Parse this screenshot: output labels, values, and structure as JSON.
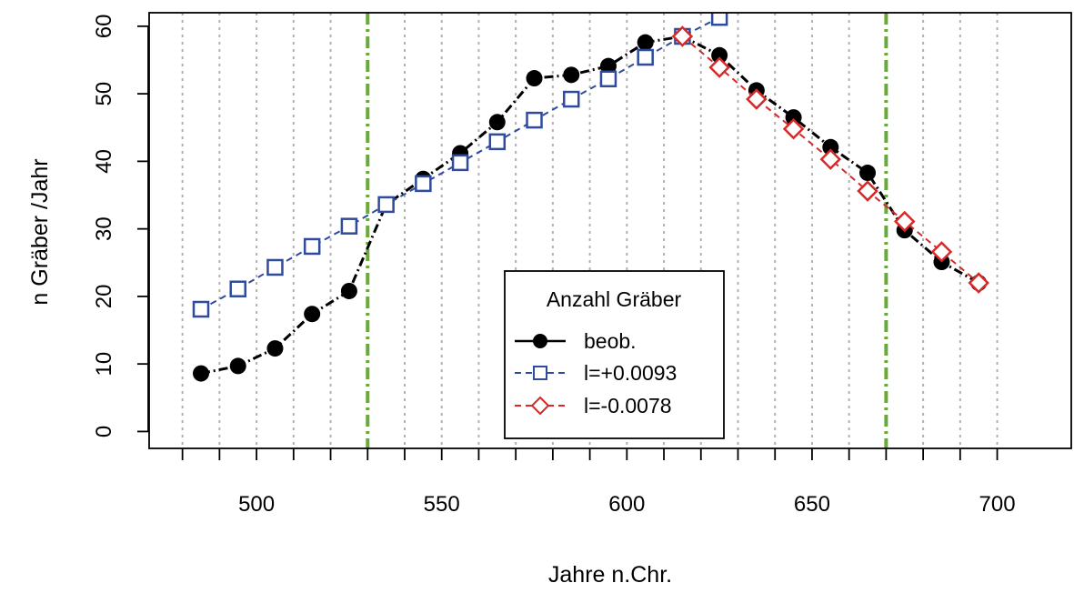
{
  "chart_data": {
    "type": "line",
    "title": "",
    "xlabel": "Jahre n.Chr.",
    "ylabel": "n Gräber /Jahr",
    "xlim": [
      471,
      720
    ],
    "ylim": [
      -2.5,
      62
    ],
    "x_ticks": [
      500,
      550,
      600,
      650,
      700
    ],
    "y_ticks": [
      0,
      10,
      20,
      30,
      40,
      50,
      60
    ],
    "vertical_dotted_grid": [
      480,
      490,
      500,
      510,
      520,
      540,
      550,
      560,
      570,
      580,
      590,
      600,
      610,
      620,
      630,
      640,
      650,
      660,
      680,
      690,
      700
    ],
    "vertical_dashed_markers": [
      530,
      670
    ],
    "marker_color": "#6aaa3a",
    "legend": {
      "title": "Anzahl Gräber",
      "position": "bottom-center",
      "entries": [
        "beob.",
        "l=+0.0093",
        "l=-0.0078"
      ]
    },
    "series": [
      {
        "name": "beob.",
        "color": "#000000",
        "marker": "filled-circle",
        "line": "dash-dot",
        "x": [
          485,
          495,
          505,
          515,
          525,
          535,
          545,
          555,
          565,
          575,
          585,
          595,
          605,
          615,
          625,
          635,
          645,
          655,
          665,
          675,
          685,
          695
        ],
        "y": [
          8.6,
          9.7,
          12.3,
          17.4,
          20.8,
          33.6,
          37.4,
          41.2,
          45.8,
          52.3,
          52.8,
          54.1,
          57.6,
          58.5,
          55.7,
          50.5,
          46.5,
          42.1,
          38.3,
          29.8,
          25.1,
          22.0
        ]
      },
      {
        "name": "l=+0.0093",
        "color": "#2e4b9e",
        "marker": "open-square",
        "line": "dashed",
        "x": [
          485,
          495,
          505,
          515,
          525,
          535,
          545,
          555,
          565,
          575,
          585,
          595,
          605,
          615,
          625
        ],
        "y": [
          18.1,
          21.1,
          24.3,
          27.4,
          30.4,
          33.6,
          36.7,
          39.8,
          42.9,
          46.1,
          49.2,
          52.2,
          55.4,
          58.5,
          61.3
        ]
      },
      {
        "name": "l=-0.0078",
        "color": "#d42a2a",
        "marker": "open-diamond",
        "line": "dashed",
        "x": [
          615,
          625,
          635,
          645,
          655,
          665,
          675,
          685,
          695
        ],
        "y": [
          58.5,
          53.9,
          49.2,
          44.8,
          40.3,
          35.6,
          31.1,
          26.6,
          22.0
        ]
      }
    ]
  }
}
